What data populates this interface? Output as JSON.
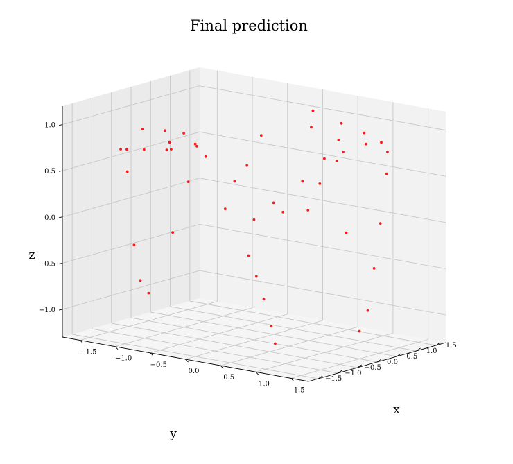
{
  "chart_data": {
    "type": "scatter",
    "projection": "3d",
    "title": "Final prediction",
    "xlabel": "x",
    "ylabel": "y",
    "zlabel": "z",
    "xlim": [
      -1.75,
      1.75
    ],
    "ylim": [
      -1.75,
      1.75
    ],
    "zlim": [
      -1.3,
      1.2
    ],
    "x_ticks": [
      -1.5,
      -1.0,
      -0.5,
      0.0,
      0.5,
      1.0,
      1.5
    ],
    "y_ticks": [
      -1.5,
      -1.0,
      -0.5,
      0.0,
      0.5,
      1.0,
      1.5
    ],
    "z_ticks": [
      -1.0,
      -0.5,
      0.0,
      0.5,
      1.0
    ],
    "x_tick_labels": [
      "−1.5",
      "−1.0",
      "−0.5",
      "0.0",
      "0.5",
      "1.0",
      "1.5"
    ],
    "y_tick_labels": [
      "−1.5",
      "−1.0",
      "−0.5",
      "0.0",
      "0.5",
      "1.0",
      "1.5"
    ],
    "z_tick_labels": [
      "−1.0",
      "−0.5",
      "0.0",
      "0.5",
      "1.0"
    ],
    "grid": true,
    "marker_color": "#ff0000",
    "series": [
      {
        "points": [
          [
            1.5,
            0.0,
            -1.0
          ],
          [
            1.45,
            0.3,
            -0.82
          ],
          [
            1.4,
            0.55,
            -0.4
          ],
          [
            1.35,
            0.8,
            0.05
          ],
          [
            1.3,
            1.05,
            0.55
          ],
          [
            1.2,
            1.25,
            0.75
          ],
          [
            1.0,
            1.45,
            0.8
          ],
          [
            0.7,
            1.55,
            0.85
          ],
          [
            0.35,
            1.6,
            0.9
          ],
          [
            0.0,
            1.5,
            1.0
          ],
          [
            -1.5,
            0.0,
            -1.0
          ],
          [
            -1.45,
            -0.3,
            -0.82
          ],
          [
            -1.4,
            -0.55,
            -0.4
          ],
          [
            -1.3,
            -0.9,
            0.45
          ],
          [
            -1.2,
            -1.25,
            0.75
          ],
          [
            -1.0,
            -1.45,
            0.8
          ],
          [
            -0.7,
            -1.55,
            0.85
          ],
          [
            -0.35,
            -1.6,
            0.9
          ],
          [
            0.0,
            -1.5,
            1.0
          ],
          [
            0.0,
            0.0,
            0.0
          ],
          [
            0.3,
            0.2,
            0.1
          ],
          [
            -0.3,
            -0.2,
            0.1
          ],
          [
            0.5,
            -0.4,
            0.3
          ],
          [
            -0.5,
            0.4,
            0.3
          ],
          [
            0.6,
            0.6,
            0.4
          ],
          [
            -0.6,
            -0.6,
            0.4
          ],
          [
            0.8,
            -0.2,
            0.55
          ],
          [
            -0.8,
            0.2,
            0.55
          ],
          [
            0.9,
            0.5,
            0.7
          ],
          [
            -0.9,
            -0.5,
            0.7
          ],
          [
            0.4,
            -0.9,
            0.75
          ],
          [
            -0.4,
            0.9,
            0.75
          ],
          [
            1.0,
            0.0,
            0.8
          ],
          [
            -1.0,
            0.0,
            0.8
          ],
          [
            0.2,
            1.1,
            0.9
          ],
          [
            -0.2,
            -1.1,
            0.9
          ],
          [
            1.1,
            0.3,
            0.85
          ],
          [
            -1.1,
            -0.3,
            0.85
          ],
          [
            0.7,
            0.9,
            0.85
          ],
          [
            -0.7,
            -0.9,
            0.85
          ],
          [
            1.2,
            0.7,
            0.9
          ],
          [
            -1.2,
            -0.7,
            0.9
          ],
          [
            0.2,
            -0.5,
            -0.3
          ],
          [
            0.2,
            -0.3,
            -0.55
          ],
          [
            0.25,
            -0.2,
            -0.8
          ],
          [
            0.3,
            -0.1,
            -1.1
          ],
          [
            0.3,
            0.0,
            -1.3
          ],
          [
            -0.6,
            -1.0,
            -0.1
          ],
          [
            0.6,
            0.3,
            0.15
          ],
          [
            1.2,
            0.2,
            0.0
          ]
        ]
      }
    ]
  }
}
